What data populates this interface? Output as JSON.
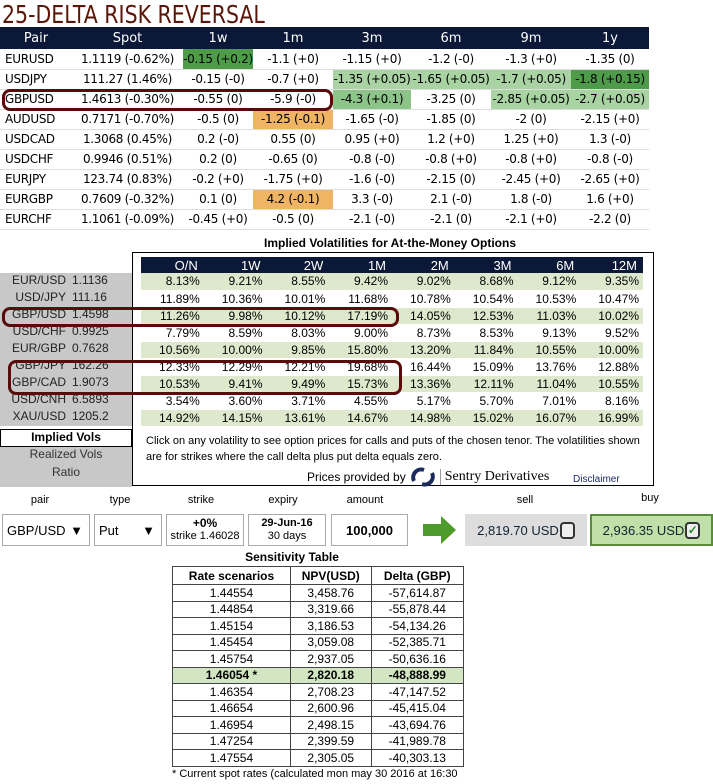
{
  "title": "25-DELTA RISK REVERSAL",
  "colors": {
    "dark_green": "#4e9c4a",
    "mid_green": "#8cc489",
    "light_green": "#a9d3a3",
    "orange": "#efb565",
    "navy": "#0b1838",
    "highlight": "#5a0a0a"
  },
  "risk_reversal": {
    "headers": [
      "Pair",
      "Spot",
      "1w",
      "1m",
      "3m",
      "6m",
      "9m",
      "1y"
    ],
    "rows": [
      {
        "pair": "EURUSD",
        "spot": "1.1119 (-0.62%)",
        "cells": [
          "-0.15 (+0.2)",
          "-1.1 (+0)",
          "-1.15 (+0)",
          "-1.2 (-0)",
          "-1.3 (+0)",
          "-1.35 (0)"
        ],
        "bg": [
          "dark_green",
          "",
          "",
          "",
          "",
          ""
        ]
      },
      {
        "pair": "USDJPY",
        "spot": "111.27 (1.46%)",
        "cells": [
          "-0.15 (-0)",
          "-0.7 (+0)",
          "-1.35 (+0.05)",
          "-1.65 (+0.05)",
          "-1.7 (+0.05)",
          "-1.8 (+0.15)"
        ],
        "bg": [
          "",
          "",
          "light_green",
          "light_green",
          "light_green",
          "dark_green"
        ]
      },
      {
        "pair": "GBPUSD",
        "spot": "1.4613 (-0.30%)",
        "cells": [
          "-0.55 (0)",
          "-5.9 (-0)",
          "-4.3 (+0.1)",
          "-3.25 (0)",
          "-2.85 (+0.05)",
          "-2.7 (+0.05)"
        ],
        "bg": [
          "",
          "",
          "mid_green",
          "",
          "light_green",
          "light_green"
        ]
      },
      {
        "pair": "AUDUSD",
        "spot": "0.7171 (-0.70%)",
        "cells": [
          "-0.5 (0)",
          "-1.25 (-0.1)",
          "-1.65 (-0)",
          "-1.85 (0)",
          "-2 (0)",
          "-2.15 (+0)"
        ],
        "bg": [
          "",
          "orange",
          "",
          "",
          "",
          ""
        ]
      },
      {
        "pair": "USDCAD",
        "spot": "1.3068 (0.45%)",
        "cells": [
          "0.2 (-0)",
          "0.55 (0)",
          "0.95 (+0)",
          "1.2 (+0)",
          "1.25 (+0)",
          "1.3 (-0)"
        ],
        "bg": [
          "",
          "",
          "",
          "",
          "",
          ""
        ]
      },
      {
        "pair": "USDCHF",
        "spot": "0.9946 (0.51%)",
        "cells": [
          "0.2 (0)",
          "-0.65 (0)",
          "-0.8 (-0)",
          "-0.8 (+0)",
          "-0.8 (+0)",
          "-0.8 (-0)"
        ],
        "bg": [
          "",
          "",
          "",
          "",
          "",
          ""
        ]
      },
      {
        "pair": "EURJPY",
        "spot": "123.74 (0.83%)",
        "cells": [
          "-0.2 (+0)",
          "-1.75 (+0)",
          "-1.6 (-0)",
          "-2.15 (0)",
          "-2.45 (+0)",
          "-2.65 (+0)"
        ],
        "bg": [
          "",
          "",
          "",
          "",
          "",
          ""
        ]
      },
      {
        "pair": "EURGBP",
        "spot": "0.7609 (-0.32%)",
        "cells": [
          "0.1 (0)",
          "4.2 (-0.1)",
          "3.3 (-0)",
          "2.1 (-0)",
          "1.8 (-0)",
          "1.6 (+0)"
        ],
        "bg": [
          "",
          "orange",
          "",
          "",
          "",
          ""
        ]
      },
      {
        "pair": "EURCHF",
        "spot": "1.1061 (-0.09%)",
        "cells": [
          "-0.45 (+0)",
          "-0.5 (0)",
          "-2.1 (-0)",
          "-2.1 (0)",
          "-2.1 (+0)",
          "-2.2 (0)"
        ],
        "bg": [
          "",
          "",
          "",
          "",
          "",
          ""
        ]
      }
    ]
  },
  "implied_vols": {
    "title": "Implied Volatilities for At-the-Money Options",
    "headers": [
      "O/N",
      "1W",
      "2W",
      "1M",
      "2M",
      "3M",
      "6M",
      "12M"
    ],
    "rows": [
      {
        "pair": "EUR/USD",
        "spot": "1.1136",
        "vals": [
          "8.13%",
          "9.21%",
          "8.55%",
          "9.42%",
          "9.02%",
          "8.68%",
          "9.12%",
          "9.35%"
        ]
      },
      {
        "pair": "USD/JPY",
        "spot": "111.16",
        "vals": [
          "11.89%",
          "10.36%",
          "10.01%",
          "11.68%",
          "10.78%",
          "10.54%",
          "10.53%",
          "10.47%"
        ]
      },
      {
        "pair": "GBP/USD",
        "spot": "1.4598",
        "vals": [
          "11.26%",
          "9.98%",
          "10.12%",
          "17.19%",
          "14.05%",
          "12.53%",
          "11.03%",
          "10.02%"
        ]
      },
      {
        "pair": "USD/CHF",
        "spot": "0.9925",
        "vals": [
          "7.79%",
          "8.59%",
          "8.03%",
          "9.00%",
          "8.73%",
          "8.53%",
          "9.13%",
          "9.52%"
        ]
      },
      {
        "pair": "EUR/GBP",
        "spot": "0.7628",
        "vals": [
          "10.56%",
          "10.00%",
          "9.85%",
          "15.80%",
          "13.20%",
          "11.84%",
          "10.55%",
          "10.00%"
        ]
      },
      {
        "pair": "GBP/JPY",
        "spot": "162.26",
        "vals": [
          "12.33%",
          "12.29%",
          "12.21%",
          "19.68%",
          "16.44%",
          "15.09%",
          "13.76%",
          "12.88%"
        ]
      },
      {
        "pair": "GBP/CAD",
        "spot": "1.9073",
        "vals": [
          "10.53%",
          "9.41%",
          "9.49%",
          "15.73%",
          "13.36%",
          "12.11%",
          "11.04%",
          "10.55%"
        ]
      },
      {
        "pair": "USD/CNH",
        "spot": "6.5893",
        "vals": [
          "3.54%",
          "3.60%",
          "3.71%",
          "4.55%",
          "5.17%",
          "5.70%",
          "7.01%",
          "8.16%"
        ]
      },
      {
        "pair": "XAU/USD",
        "spot": "1205.2",
        "vals": [
          "14.92%",
          "14.15%",
          "13.61%",
          "14.67%",
          "14.98%",
          "15.02%",
          "16.07%",
          "16.99%"
        ]
      }
    ],
    "tabs": [
      "Implied Vols",
      "Realized Vols",
      "Ratio"
    ],
    "note": "Click on any volatility to see option prices for calls and puts of the chosen tenor. The volatilities shown are for strikes where the call delta plus put delta equals zero.",
    "prices_provided": "Prices provided by",
    "provider": "Sentry Derivatives",
    "disclaimer": "Disclaimer"
  },
  "pricer": {
    "labels": {
      "pair": "pair",
      "type": "type",
      "strike": "strike",
      "expiry": "expiry",
      "amount": "amount",
      "sell": "sell",
      "buy": "buy"
    },
    "pair": "GBP/USD",
    "type": "Put",
    "strike_pct": "+0%",
    "strike": "strike 1.46028",
    "expiry": "29-Jun-16",
    "expiry_days": "30 days",
    "amount": "100,000",
    "sell": "2,819.70 USD",
    "buy": "2,936.35 USD",
    "buy_checked": true,
    "sell_checked": false
  },
  "sensitivity": {
    "title": "Sensitivity Table",
    "headers": [
      "Rate scenarios",
      "NPV(USD)",
      "Delta (GBP)"
    ],
    "rows": [
      [
        "1.44554",
        "3,458.76",
        "-57,614.87"
      ],
      [
        "1.44854",
        "3,319.66",
        "-55,878.44"
      ],
      [
        "1.45154",
        "3,186.53",
        "-54,134.26"
      ],
      [
        "1.45454",
        "3,059.08",
        "-52,385.71"
      ],
      [
        "1.45754",
        "2,937.05",
        "-50,636.16"
      ],
      [
        "1.46054 *",
        "2,820.18",
        "-48,888.99"
      ],
      [
        "1.46354",
        "2,708.23",
        "-47,147.52"
      ],
      [
        "1.46654",
        "2,600.96",
        "-45,415.04"
      ],
      [
        "1.46954",
        "2,498.15",
        "-43,694.76"
      ],
      [
        "1.47254",
        "2,399.59",
        "-41,989.78"
      ],
      [
        "1.47554",
        "2,305.05",
        "-40,303.13"
      ]
    ],
    "current_row": 5,
    "footnote": "* Current spot rates (calculated mon may 30 2016 at 16:30"
  }
}
